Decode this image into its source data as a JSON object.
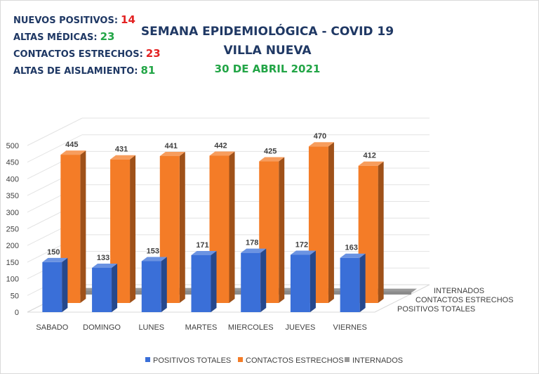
{
  "stats": [
    {
      "label": "NUEVOS POSITIVOS:",
      "value": "14",
      "color": "#e32222"
    },
    {
      "label": "ALTAS MÉDICAS:",
      "value": "23",
      "color": "#22a546"
    },
    {
      "label": "CONTACTOS ESTRECHOS:",
      "value": "23",
      "color": "#e32222"
    },
    {
      "label": "ALTAS DE AISLAMIENTO:",
      "value": "81",
      "color": "#22a546"
    }
  ],
  "header": {
    "title": "SEMANA EPIDEMIOLÓGICA - COVID 19",
    "subtitle": "VILLA NUEVA",
    "date": "30 DE ABRIL 2021"
  },
  "colors": {
    "title": "#1f3864",
    "date": "#22a546",
    "positivos": "#3a6fd8",
    "contactos": "#f47c27",
    "internados": "#9a9a9a"
  },
  "chart_data": {
    "type": "bar",
    "categories": [
      "SABADO",
      "DOMINGO",
      "LUNES",
      "MARTES",
      "MIERCOLES",
      "JUEVES",
      "VIERNES"
    ],
    "series": [
      {
        "name": "POSITIVOS TOTALES",
        "values": [
          150,
          133,
          153,
          171,
          178,
          172,
          163
        ]
      },
      {
        "name": "CONTACTOS ESTRECHOS",
        "values": [
          445,
          431,
          441,
          442,
          425,
          470,
          412
        ]
      },
      {
        "name": "INTERNADOS",
        "values": [
          5,
          5,
          5,
          5,
          5,
          4,
          3
        ]
      }
    ],
    "ylim": [
      0,
      500
    ],
    "yticks": [
      0,
      50,
      100,
      150,
      200,
      250,
      300,
      350,
      400,
      450,
      500
    ],
    "grid": true,
    "legend": "bottom"
  }
}
